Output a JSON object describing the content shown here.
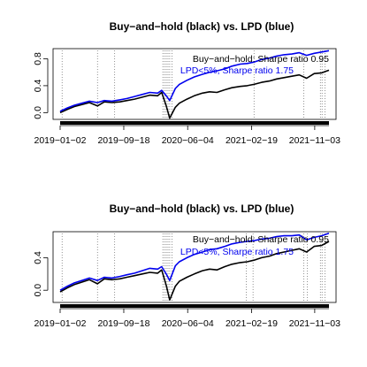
{
  "chart_data": [
    {
      "type": "line",
      "title": "Buy−and−hold (black) vs. LPD (blue)",
      "xlabel": "",
      "ylabel": "",
      "x_tick_labels": [
        "2019−01−02",
        "2019−09−18",
        "2020−06−04",
        "2021−02−19",
        "2021−11−03"
      ],
      "x_ticks": [
        "2019-01-02",
        "2019-09-18",
        "2020-06-04",
        "2021-02-19",
        "2021-11-03"
      ],
      "xlim": [
        "2019-01-02",
        "2021-12-31"
      ],
      "y_ticks": [
        0.0,
        0.4,
        0.8
      ],
      "y_tick_labels": [
        "0.0",
        "0.4",
        "0.8"
      ],
      "ylim": [
        -0.1,
        0.95
      ],
      "grid": false,
      "legend": {
        "placement": "top-right",
        "entries": [
          {
            "text": "Buy−and−hold: Sharpe ratio 0.95",
            "color": "#000000"
          },
          {
            "text": "LPD<5%, Sharpe ratio 1.75",
            "color": "#0000ee"
          }
        ]
      },
      "signal_dates": [
        "2019-01-10",
        "2019-06-03",
        "2019-08-12",
        "2020-02-24",
        "2020-03-02",
        "2020-03-09",
        "2020-03-16",
        "2020-03-23",
        "2020-04-01",
        "2021-03-01",
        "2021-09-20",
        "2021-11-26",
        "2021-12-03",
        "2021-12-15"
      ],
      "series": [
        {
          "name": "Buy-and-hold",
          "color": "#000000",
          "x": [
            "2019-01-02",
            "2019-02-01",
            "2019-03-01",
            "2019-04-01",
            "2019-05-01",
            "2019-06-03",
            "2019-07-01",
            "2019-08-01",
            "2019-09-02",
            "2019-10-01",
            "2019-11-01",
            "2019-12-02",
            "2020-01-02",
            "2020-02-03",
            "2020-02-19",
            "2020-03-09",
            "2020-03-23",
            "2020-04-15",
            "2020-05-01",
            "2020-06-01",
            "2020-07-01",
            "2020-08-03",
            "2020-09-01",
            "2020-10-01",
            "2020-11-02",
            "2020-12-01",
            "2021-01-04",
            "2021-02-01",
            "2021-03-01",
            "2021-04-01",
            "2021-05-03",
            "2021-06-01",
            "2021-07-01",
            "2021-08-02",
            "2021-09-01",
            "2021-10-01",
            "2021-11-01",
            "2021-12-01",
            "2021-12-31"
          ],
          "values": [
            0.0,
            0.05,
            0.09,
            0.12,
            0.15,
            0.1,
            0.16,
            0.15,
            0.16,
            0.18,
            0.2,
            0.23,
            0.26,
            0.25,
            0.3,
            0.1,
            -0.08,
            0.08,
            0.14,
            0.2,
            0.25,
            0.29,
            0.31,
            0.3,
            0.34,
            0.37,
            0.39,
            0.4,
            0.42,
            0.45,
            0.47,
            0.5,
            0.52,
            0.54,
            0.56,
            0.51,
            0.58,
            0.59,
            0.63
          ]
        },
        {
          "name": "LPD<5%",
          "color": "#0000ee",
          "x": [
            "2019-01-02",
            "2019-02-01",
            "2019-03-01",
            "2019-04-01",
            "2019-05-01",
            "2019-06-03",
            "2019-07-01",
            "2019-08-01",
            "2019-09-02",
            "2019-10-01",
            "2019-11-01",
            "2019-12-02",
            "2020-01-02",
            "2020-02-03",
            "2020-02-19",
            "2020-03-09",
            "2020-03-23",
            "2020-04-15",
            "2020-05-01",
            "2020-06-01",
            "2020-07-01",
            "2020-08-03",
            "2020-09-01",
            "2020-10-01",
            "2020-11-02",
            "2020-12-01",
            "2021-01-04",
            "2021-02-01",
            "2021-03-01",
            "2021-04-01",
            "2021-05-03",
            "2021-06-01",
            "2021-07-01",
            "2021-08-02",
            "2021-09-01",
            "2021-10-01",
            "2021-11-01",
            "2021-12-01",
            "2021-12-31"
          ],
          "values": [
            0.02,
            0.07,
            0.11,
            0.14,
            0.17,
            0.15,
            0.18,
            0.17,
            0.19,
            0.21,
            0.24,
            0.27,
            0.3,
            0.29,
            0.33,
            0.25,
            0.18,
            0.36,
            0.42,
            0.48,
            0.53,
            0.57,
            0.6,
            0.62,
            0.65,
            0.69,
            0.72,
            0.73,
            0.75,
            0.79,
            0.81,
            0.84,
            0.86,
            0.87,
            0.89,
            0.85,
            0.88,
            0.9,
            0.92
          ]
        }
      ]
    },
    {
      "type": "line",
      "title": "Buy−and−hold (black) vs. LPD (blue)",
      "xlabel": "",
      "ylabel": "",
      "x_tick_labels": [
        "2019−01−02",
        "2019−09−18",
        "2020−06−04",
        "2021−02−19",
        "2021−11−03"
      ],
      "x_ticks": [
        "2019-01-02",
        "2019-09-18",
        "2020-06-04",
        "2021-02-19",
        "2021-11-03"
      ],
      "xlim": [
        "2019-01-02",
        "2021-12-31"
      ],
      "y_ticks": [
        0.0,
        0.4
      ],
      "y_tick_labels": [
        "0.0",
        "0.4"
      ],
      "ylim": [
        -0.15,
        0.72
      ],
      "grid": false,
      "legend": {
        "placement": "top-right",
        "entries": [
          {
            "text": "Buy−and−hold: Sharpe ratio 0.95",
            "color": "#000000"
          },
          {
            "text": "LPD<5%, Sharpe ratio 1.75",
            "color": "#0000ee"
          }
        ]
      },
      "signal_dates": [
        "2019-01-10",
        "2019-06-03",
        "2019-08-12",
        "2020-02-24",
        "2020-03-02",
        "2020-03-09",
        "2020-03-16",
        "2020-03-23",
        "2020-04-01",
        "2021-01-28",
        "2021-02-25",
        "2021-09-20",
        "2021-10-04",
        "2021-11-26",
        "2021-12-03",
        "2021-12-15"
      ],
      "series": [
        {
          "name": "Buy-and-hold",
          "color": "#000000",
          "x": [
            "2019-01-02",
            "2019-02-01",
            "2019-03-01",
            "2019-04-01",
            "2019-05-01",
            "2019-06-03",
            "2019-07-01",
            "2019-08-01",
            "2019-09-02",
            "2019-10-01",
            "2019-11-01",
            "2019-12-02",
            "2020-01-02",
            "2020-02-03",
            "2020-02-19",
            "2020-03-09",
            "2020-03-23",
            "2020-04-15",
            "2020-05-01",
            "2020-06-01",
            "2020-07-01",
            "2020-08-03",
            "2020-09-01",
            "2020-10-01",
            "2020-11-02",
            "2020-12-01",
            "2021-01-04",
            "2021-02-01",
            "2021-03-01",
            "2021-04-01",
            "2021-05-03",
            "2021-06-01",
            "2021-07-01",
            "2021-08-02",
            "2021-09-01",
            "2021-10-01",
            "2021-11-01",
            "2021-12-01",
            "2021-12-31"
          ],
          "values": [
            -0.02,
            0.03,
            0.07,
            0.1,
            0.13,
            0.08,
            0.14,
            0.13,
            0.14,
            0.16,
            0.18,
            0.2,
            0.22,
            0.21,
            0.25,
            0.06,
            -0.12,
            0.05,
            0.11,
            0.16,
            0.2,
            0.24,
            0.26,
            0.25,
            0.29,
            0.32,
            0.34,
            0.35,
            0.37,
            0.4,
            0.42,
            0.45,
            0.47,
            0.49,
            0.51,
            0.47,
            0.54,
            0.55,
            0.6
          ]
        },
        {
          "name": "LPD<5%",
          "color": "#0000ee",
          "x": [
            "2019-01-02",
            "2019-02-01",
            "2019-03-01",
            "2019-04-01",
            "2019-05-01",
            "2019-06-03",
            "2019-07-01",
            "2019-08-01",
            "2019-09-02",
            "2019-10-01",
            "2019-11-01",
            "2019-12-02",
            "2020-01-02",
            "2020-02-03",
            "2020-02-19",
            "2020-03-09",
            "2020-03-23",
            "2020-04-15",
            "2020-05-01",
            "2020-06-01",
            "2020-07-01",
            "2020-08-03",
            "2020-09-01",
            "2020-10-01",
            "2020-11-02",
            "2020-12-01",
            "2021-01-04",
            "2021-02-01",
            "2021-03-01",
            "2021-04-01",
            "2021-05-03",
            "2021-06-01",
            "2021-07-01",
            "2021-08-02",
            "2021-09-01",
            "2021-10-01",
            "2021-11-01",
            "2021-12-01",
            "2021-12-31"
          ],
          "values": [
            0.0,
            0.05,
            0.09,
            0.12,
            0.15,
            0.12,
            0.16,
            0.15,
            0.17,
            0.19,
            0.21,
            0.24,
            0.27,
            0.26,
            0.29,
            0.2,
            0.12,
            0.3,
            0.35,
            0.4,
            0.44,
            0.47,
            0.5,
            0.51,
            0.54,
            0.57,
            0.59,
            0.6,
            0.61,
            0.63,
            0.64,
            0.66,
            0.67,
            0.67,
            0.68,
            0.62,
            0.65,
            0.67,
            0.7
          ]
        }
      ]
    }
  ]
}
